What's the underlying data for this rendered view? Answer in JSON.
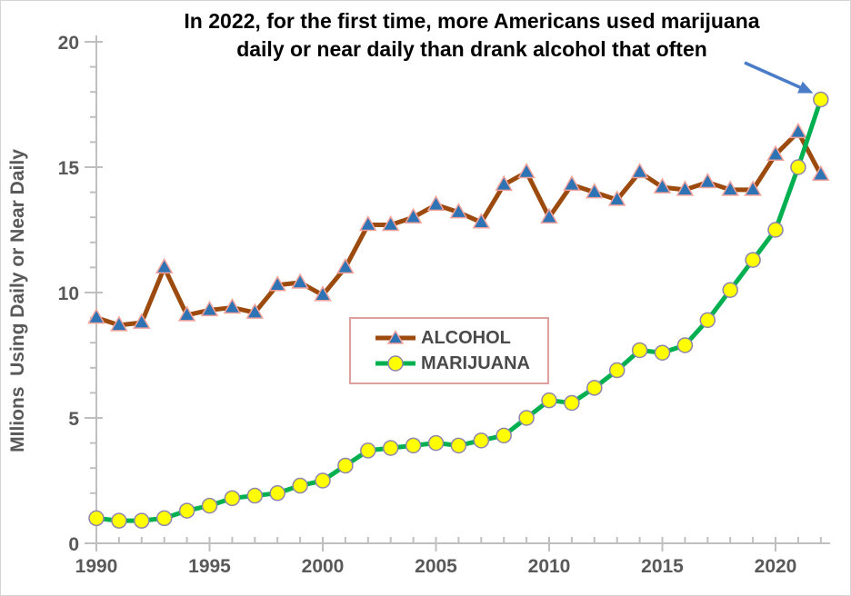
{
  "title": {
    "line1": "In 2022, for the first time, more Americans used marijuana",
    "line2": "daily or near daily than drank alcohol that often"
  },
  "y_axis": {
    "label": "MIlions  Using Daily or Near Daily",
    "min": 0,
    "max": 20,
    "major_step": 5,
    "minor_step": 1,
    "major_ticks": [
      0,
      5,
      10,
      15,
      20
    ]
  },
  "x_axis": {
    "min": 1990,
    "max": 2022,
    "major_step": 5,
    "minor_step": 1,
    "major_ticks": [
      1990,
      1995,
      2000,
      2005,
      2010,
      2015,
      2020
    ]
  },
  "colors": {
    "axis": "#bfbfbf",
    "tick_text": "#595959",
    "title_text": "#000000",
    "legend_border": "#dda09c",
    "legend_text": "#4a4a4a",
    "arrow": "#4a7cc7",
    "background": "#ffffff"
  },
  "chart_data": {
    "type": "line",
    "title": "In 2022, for the first time, more Americans used marijuana daily or near daily than drank alcohol that often",
    "xlabel": "",
    "ylabel": "MIlions Using Daily or Near Daily",
    "ylim": [
      0,
      20
    ],
    "xlim": [
      1990,
      2022
    ],
    "grid": false,
    "legend_position": "center",
    "x": [
      1990,
      1991,
      1992,
      1993,
      1994,
      1995,
      1996,
      1997,
      1998,
      1999,
      2000,
      2001,
      2002,
      2003,
      2004,
      2005,
      2006,
      2007,
      2008,
      2009,
      2010,
      2011,
      2012,
      2013,
      2014,
      2015,
      2016,
      2017,
      2018,
      2019,
      2020,
      2021,
      2022
    ],
    "series": [
      {
        "name": "ALCOHOL",
        "color": "#9c4a0e",
        "marker": "triangle",
        "marker_fill": "#2e74b5",
        "marker_stroke": "#f2a19b",
        "values": [
          9.0,
          8.7,
          8.8,
          11.0,
          9.1,
          9.3,
          9.4,
          9.2,
          10.3,
          10.4,
          9.9,
          11.0,
          12.7,
          12.7,
          13.0,
          13.5,
          13.2,
          12.8,
          14.3,
          14.8,
          13.0,
          14.3,
          14.0,
          13.7,
          14.8,
          14.2,
          14.1,
          14.4,
          14.1,
          14.1,
          15.5,
          16.4,
          14.7
        ]
      },
      {
        "name": "MARIJUANA",
        "color": "#00b050",
        "marker": "circle",
        "marker_fill": "#ffff00",
        "marker_stroke": "#8d84ad",
        "values": [
          1.0,
          0.9,
          0.9,
          1.0,
          1.3,
          1.5,
          1.8,
          1.9,
          2.0,
          2.3,
          2.5,
          3.1,
          3.7,
          3.8,
          3.9,
          4.0,
          3.9,
          4.1,
          4.3,
          5.0,
          5.7,
          5.6,
          6.2,
          6.9,
          7.7,
          7.6,
          7.9,
          8.9,
          10.1,
          11.3,
          12.5,
          15.0,
          17.7
        ]
      }
    ],
    "annotation": {
      "type": "arrow",
      "points_to_series": "MARIJUANA",
      "points_to_x": 2022,
      "points_to_value": 17.7
    }
  }
}
